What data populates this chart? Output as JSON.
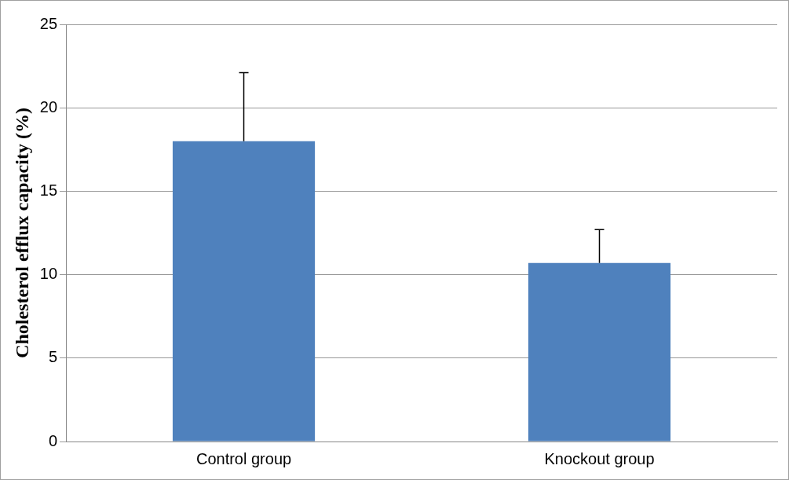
{
  "chart_data": {
    "type": "bar",
    "ylabel": "Cholesterol efflux capacity (%)",
    "categories": [
      "Control group",
      "Knockout group"
    ],
    "values": [
      18.0,
      10.7
    ],
    "errors": [
      [
        18.0,
        22.1
      ],
      [
        10.7,
        12.7
      ]
    ],
    "color": "#4f81bd",
    "ylim": [
      0,
      25
    ],
    "yticks": [
      0,
      5,
      10,
      15,
      20,
      25
    ],
    "grid": "y",
    "legend": false
  }
}
